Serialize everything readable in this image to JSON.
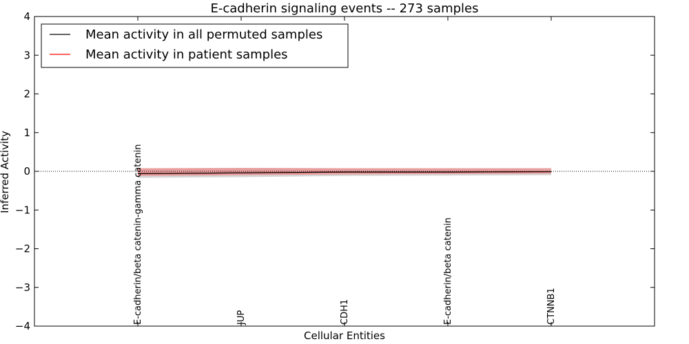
{
  "chart_data": {
    "type": "line",
    "title": "E-cadherin signaling events -- 273 samples",
    "xlabel": "Cellular Entities",
    "ylabel": "Inferred Activity",
    "ylim": [
      -4,
      4
    ],
    "xlim": [
      -1,
      5
    ],
    "yticks": [
      -4,
      -3,
      -2,
      -1,
      0,
      1,
      2,
      3,
      4
    ],
    "ytick_labels": [
      "−4",
      "−3",
      "−2",
      "−1",
      "0",
      "1",
      "2",
      "3",
      "4"
    ],
    "categories": [
      "E-cadherin/beta catenin-gamma catenin",
      "JUP",
      "CDH1",
      "E-cadherin/beta catenin",
      "CTNNB1"
    ],
    "x": [
      0,
      1,
      2,
      3,
      4
    ],
    "legend_position": "top-left",
    "series": [
      {
        "name": "Mean activity in all permuted samples",
        "color": "#000000",
        "values": [
          -0.06,
          -0.04,
          -0.02,
          -0.02,
          -0.01
        ],
        "band_low": [
          -0.17,
          -0.15,
          -0.12,
          -0.11,
          -0.1
        ],
        "band_high": [
          0.07,
          0.08,
          0.08,
          0.08,
          0.08
        ],
        "band_color": "#c8c8c8"
      },
      {
        "name": "Mean activity in patient samples",
        "color": "#ff0000",
        "values": [
          -0.06,
          -0.04,
          -0.02,
          -0.02,
          -0.01
        ],
        "band_low": [
          -0.12,
          -0.1,
          -0.08,
          -0.07,
          -0.06
        ],
        "band_high": [
          0.08,
          0.09,
          0.08,
          0.08,
          0.08
        ],
        "band_color": "#f08080"
      }
    ],
    "zero_line_style": "dotted"
  }
}
